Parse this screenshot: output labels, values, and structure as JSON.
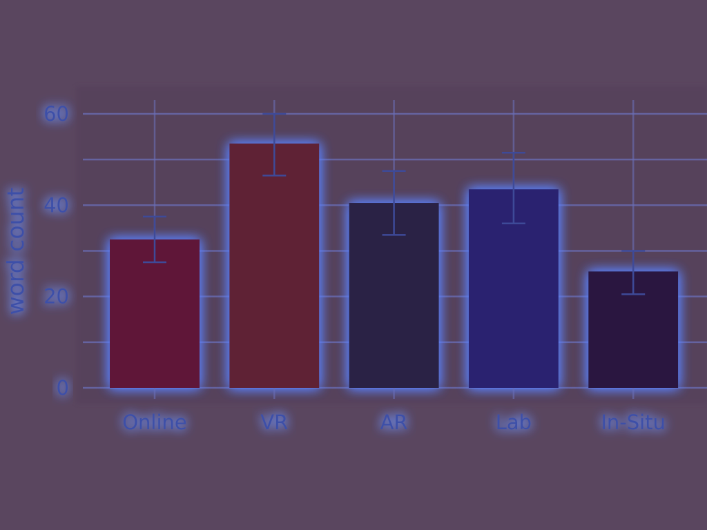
{
  "chart_data": {
    "type": "bar",
    "categories": [
      "Online",
      "VR",
      "AR",
      "Lab",
      "In-Situ"
    ],
    "values": [
      32.5,
      53.5,
      40.5,
      43.5,
      25.5
    ],
    "error_low": [
      27.5,
      46.5,
      33.5,
      36,
      20.5
    ],
    "error_high": [
      37.5,
      60,
      47.5,
      51.5,
      30
    ],
    "bar_colors": [
      "#5e1538",
      "#5e2236",
      "#2a2244",
      "#2c2370",
      "#2a1840"
    ],
    "title": "",
    "xlabel": "",
    "ylabel": "word count",
    "ylim": [
      0,
      60
    ],
    "yticks": [
      "0",
      "20",
      "40",
      "60"
    ],
    "grid": true,
    "legend": "none"
  },
  "colors": {
    "background": "#5a465f",
    "text": "#3d4fa8",
    "glow": "#5b82ff"
  }
}
